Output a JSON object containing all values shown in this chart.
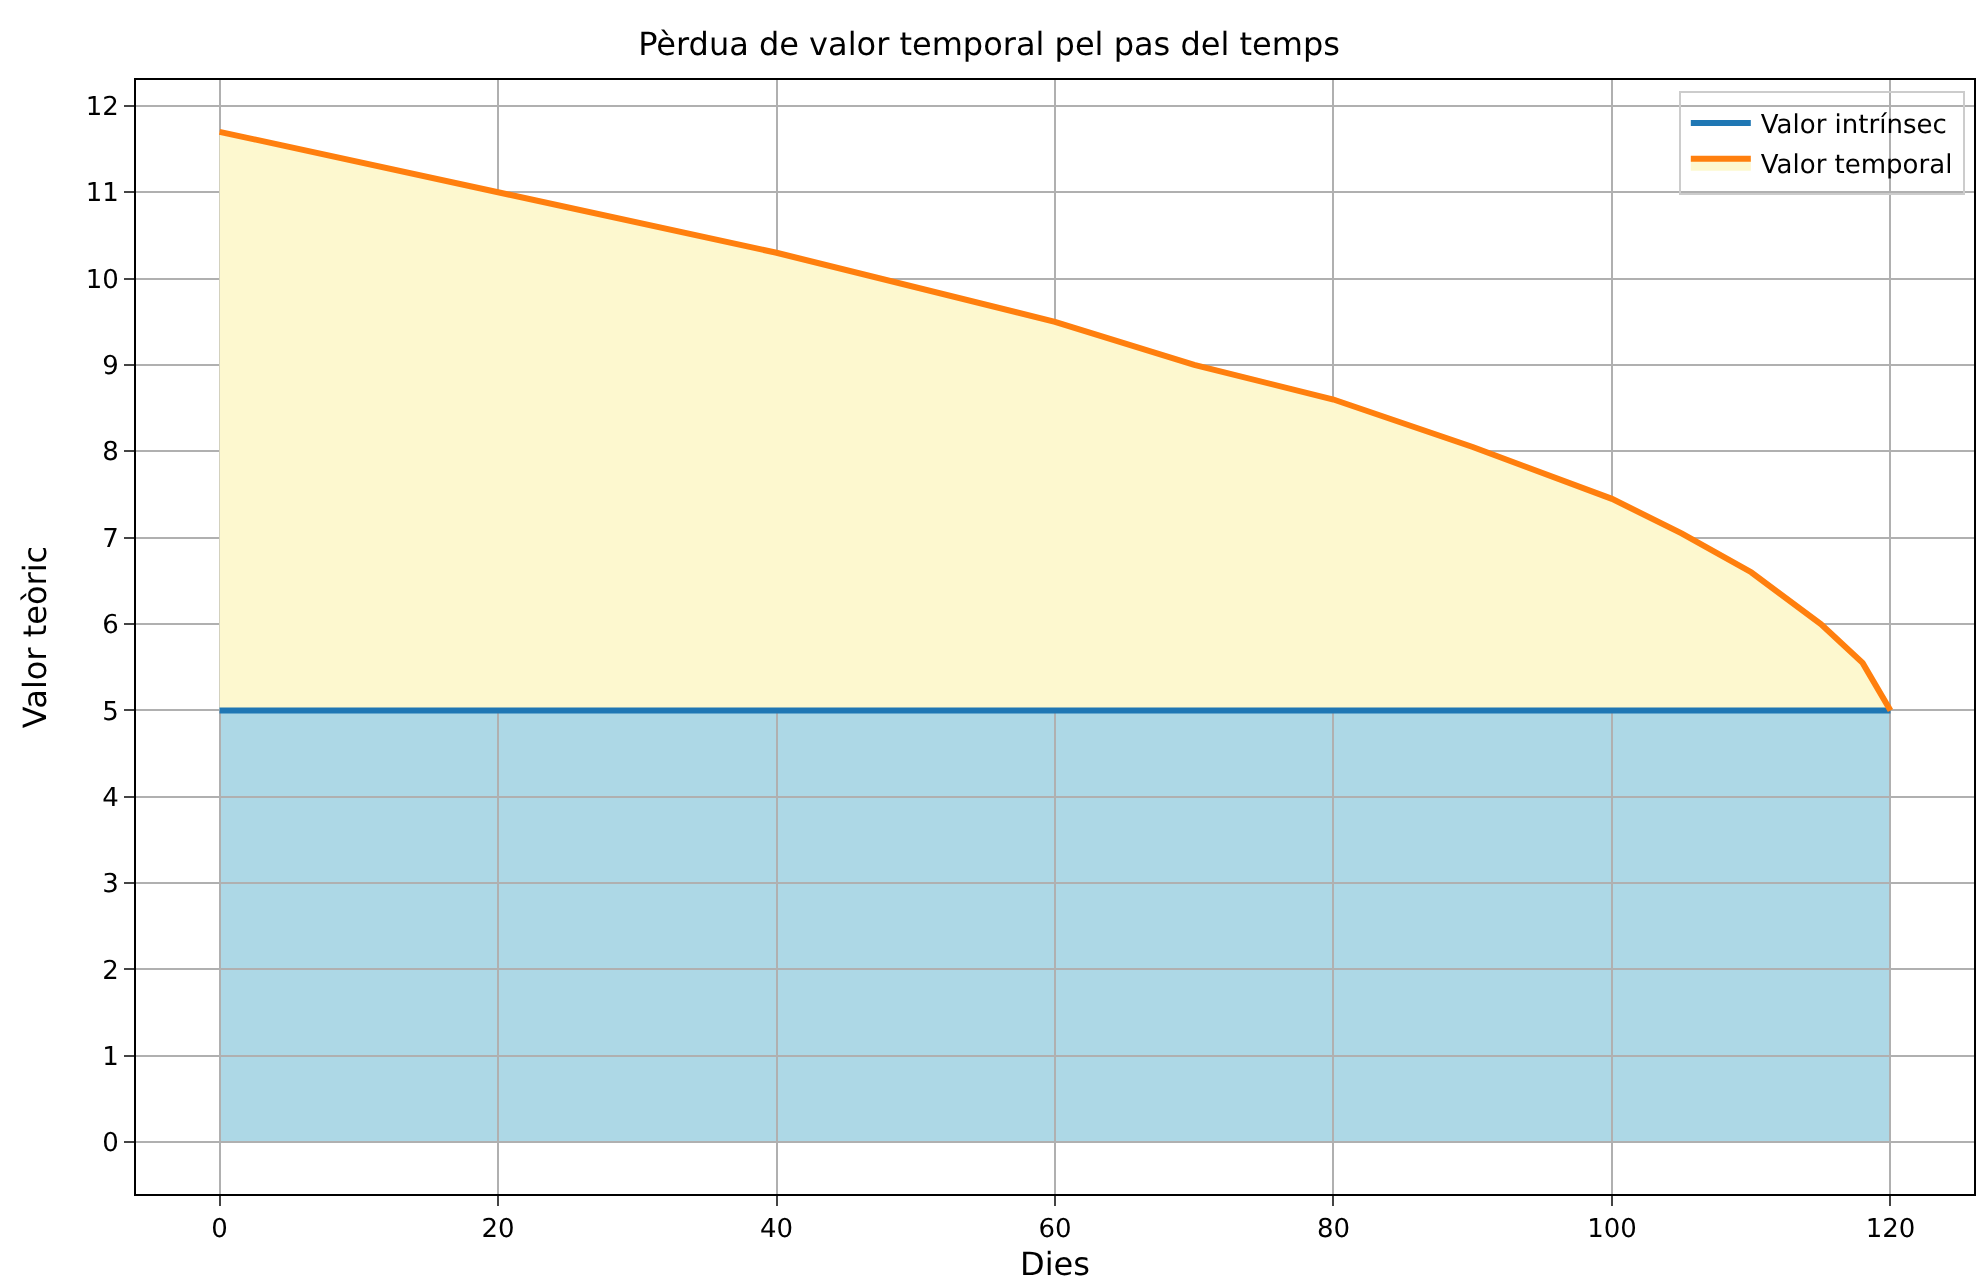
{
  "chart_data": {
    "type": "line",
    "title": "Pèrdua de valor temporal pel pas del temps",
    "xlabel": "Dies",
    "ylabel": "Valor teòric",
    "x": [
      0,
      20,
      40,
      60,
      70,
      80,
      90,
      100,
      105,
      110,
      115,
      118,
      120
    ],
    "series": [
      {
        "name": "Valor intrínsec",
        "color": "#1f77b4",
        "values": [
          5,
          5,
          5,
          5,
          5,
          5,
          5,
          5,
          5,
          5,
          5,
          5,
          5
        ]
      },
      {
        "type": "area",
        "name": "Valor temporal",
        "color": "#ff7f0e",
        "colors": [
          "#fdf8cf",
          "#fdf8cf",
          "#fdf8cf",
          "#fdf8cf",
          "#fdf8cf",
          "#fdf8cf",
          "#fdf8cf",
          "#fdf8cf",
          "#fdf8cf",
          "#fdf8cf",
          "#fdf8cf",
          "#fdf8cf",
          "#fdf8cf"
        ],
        "values": [
          11.7,
          11.0,
          10.3,
          9.5,
          9.0,
          8.6,
          8.05,
          7.45,
          7.05,
          6.6,
          6.0,
          5.55,
          5.0
        ]
      }
    ],
    "bands": [
      {
        "axis": "y",
        "from": 0,
        "to": 5,
        "color": "#add8e6"
      }
    ],
    "xlim": [
      -6,
      126
    ],
    "xticks": [
      0,
      20,
      40,
      60,
      80,
      100,
      120
    ],
    "ylim": [
      -0.6,
      12.3
    ],
    "yticks": [
      0,
      1,
      2,
      3,
      4,
      5,
      6,
      7,
      8,
      9,
      10,
      11,
      12
    ],
    "grid": true,
    "legend": "top right"
  }
}
